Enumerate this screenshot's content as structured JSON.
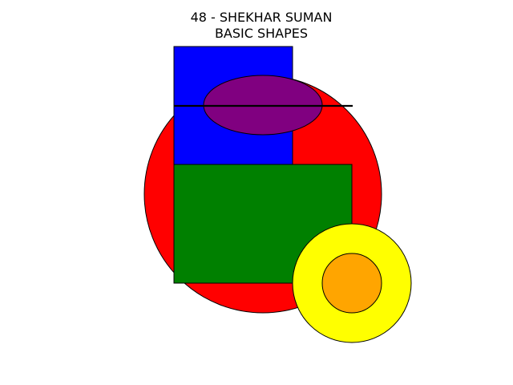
{
  "figure": {
    "title_line1": "48 - SHEKHAR SUMAN",
    "title_line2": "BASIC SHAPES",
    "background": "#ffffff"
  },
  "shapes": [
    {
      "name": "red-circle",
      "kind": "circle",
      "fill": "#ff0000"
    },
    {
      "name": "blue-rectangle",
      "kind": "rect",
      "fill": "#0000ff"
    },
    {
      "name": "green-rectangle",
      "kind": "rect",
      "fill": "#008000"
    },
    {
      "name": "purple-ellipse",
      "kind": "ellipse",
      "fill": "#800080"
    },
    {
      "name": "black-line",
      "kind": "line",
      "stroke": "#000000"
    },
    {
      "name": "yellow-circle",
      "kind": "circle",
      "fill": "#ffff00"
    },
    {
      "name": "orange-circle",
      "kind": "circle",
      "fill": "#ffa500"
    }
  ]
}
